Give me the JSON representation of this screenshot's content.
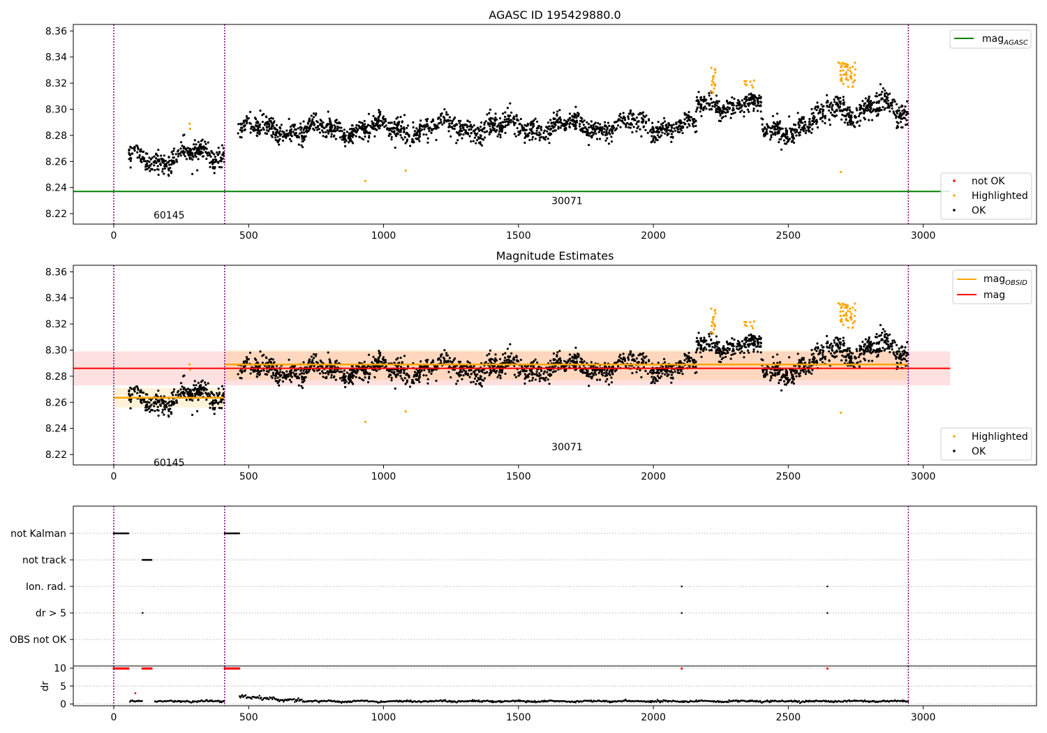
{
  "chart_data": [
    {
      "type": "scatter",
      "title": "AGASC ID 195429880.0",
      "xlim": [
        -150,
        3420
      ],
      "ylim": [
        8.212,
        8.365
      ],
      "xticks": [
        0,
        500,
        1000,
        1500,
        2000,
        2500,
        3000
      ],
      "yticks": [
        8.22,
        8.24,
        8.26,
        8.28,
        8.3,
        8.32,
        8.34,
        8.36
      ],
      "vlines": [
        0,
        411,
        2945
      ],
      "obs_labels": [
        {
          "text": "60145",
          "x": 205,
          "y": 8.219
        },
        {
          "text": "30071",
          "x": 1680,
          "y": 8.23
        }
      ],
      "agasc_mag": {
        "value": 8.237,
        "x": [
          -150,
          3100
        ]
      },
      "legend_lines": [
        {
          "name_main": "mag",
          "name_sub": "AGASC",
          "color": "#008000"
        }
      ],
      "legend_points": [
        {
          "name": "not OK",
          "color": "#ff0000"
        },
        {
          "name": "Highlighted",
          "color": "#ffa500"
        },
        {
          "name": "OK",
          "color": "#000000"
        }
      ],
      "highlighted_points": [
        [
          281,
          8.289
        ],
        [
          283,
          8.285
        ],
        [
          932,
          8.245
        ],
        [
          1082,
          8.253
        ],
        [
          2695,
          8.252
        ]
      ],
      "highlighted_clusters": [
        {
          "x": [
            2214,
            2230
          ],
          "y": [
            8.312,
            8.332
          ],
          "n": 16
        },
        {
          "x": [
            2333,
            2380
          ],
          "y": [
            8.316,
            8.322
          ],
          "n": 8
        },
        {
          "x": [
            2685,
            2750
          ],
          "y": [
            8.316,
            8.336
          ],
          "n": 50
        }
      ],
      "segments": [
        {
          "x0": 55,
          "x1": 411,
          "y0": 8.262,
          "y1": 8.266,
          "sd": 0.0055,
          "n": 320,
          "osc": 0.0045
        },
        {
          "x0": 460,
          "x1": 2160,
          "y0": 8.284,
          "y1": 8.288,
          "sd": 0.0055,
          "n": 1500,
          "osc": 0.004
        },
        {
          "x0": 2160,
          "x1": 2400,
          "y0": 8.304,
          "y1": 8.303,
          "sd": 0.005,
          "n": 220,
          "osc": 0.003
        },
        {
          "x0": 2400,
          "x1": 2640,
          "y0": 8.283,
          "y1": 8.29,
          "sd": 0.006,
          "n": 220,
          "osc": 0.005
        },
        {
          "x0": 2640,
          "x1": 2945,
          "y0": 8.302,
          "y1": 8.298,
          "sd": 0.007,
          "n": 300,
          "osc": 0.006
        }
      ]
    },
    {
      "type": "scatter",
      "title": "Magnitude Estimates",
      "xlim": [
        -150,
        3420
      ],
      "ylim": [
        8.212,
        8.365
      ],
      "xticks": [
        0,
        500,
        1000,
        1500,
        2000,
        2500,
        3000
      ],
      "yticks": [
        8.22,
        8.24,
        8.26,
        8.28,
        8.3,
        8.32,
        8.34,
        8.36
      ],
      "vlines": [
        0,
        411,
        2945
      ],
      "obs_labels": [
        {
          "text": "60145",
          "x": 205,
          "y": 8.214
        },
        {
          "text": "30071",
          "x": 1680,
          "y": 8.226
        }
      ],
      "mag": {
        "value": 8.286,
        "band": [
          8.273,
          8.299
        ],
        "x": [
          -150,
          3100
        ]
      },
      "mag_obsid": [
        {
          "value": 8.2635,
          "band": [
            8.256,
            8.271
          ],
          "x": [
            0,
            411
          ]
        },
        {
          "value": 8.289,
          "band": [
            8.277,
            8.3
          ],
          "x": [
            411,
            2945
          ]
        }
      ],
      "legend_lines": [
        {
          "name_main": "mag",
          "name_sub": "OBSID",
          "color": "#ffa500"
        },
        {
          "name_main": "mag",
          "name_sub": "",
          "color": "#ff0000"
        }
      ],
      "legend_points": [
        {
          "name": "Highlighted",
          "color": "#ffa500"
        },
        {
          "name": "OK",
          "color": "#000000"
        }
      ]
    },
    {
      "type": "scatter",
      "xlim": [
        -150,
        3420
      ],
      "xticks": [
        0,
        500,
        1000,
        1500,
        2000,
        2500,
        3000
      ],
      "vlines": [
        0,
        411,
        2945
      ],
      "flag_rows": [
        {
          "label": "not Kalman",
          "ranges": [
            [
              0,
              55
            ],
            [
              411,
              465
            ]
          ],
          "points": []
        },
        {
          "label": "not track",
          "ranges": [
            [
              107,
              140
            ]
          ],
          "points": []
        },
        {
          "label": "Ion. rad.",
          "ranges": [],
          "points": [
            2105,
            2645
          ]
        },
        {
          "label": "dr > 5",
          "ranges": [],
          "points": [
            107,
            2105,
            2645
          ]
        },
        {
          "label": "OBS not OK",
          "ranges": [],
          "points": []
        }
      ],
      "dr": {
        "ylabel": "dr",
        "ylim": [
          -0.5,
          10.6
        ],
        "yticks": [
          0,
          5,
          10
        ],
        "capped_ranges": [
          [
            0,
            55
          ],
          [
            107,
            140
          ],
          [
            411,
            465
          ]
        ],
        "capped_points": [
          2105,
          2645
        ],
        "outlier": [
          80,
          3.0
        ]
      }
    }
  ]
}
